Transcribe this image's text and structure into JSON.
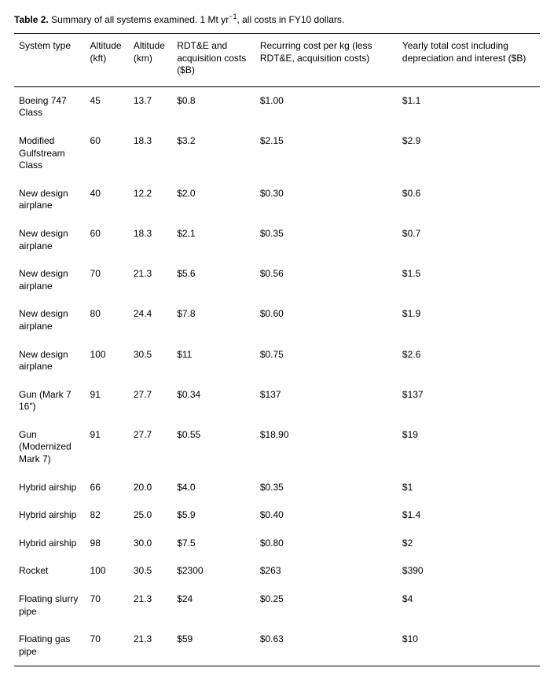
{
  "caption": {
    "label": "Table 2.",
    "text_before": "Summary of all systems examined. 1 Mt yr",
    "superscript": "−1",
    "text_after": ", all costs in FY10 dollars."
  },
  "columns": [
    "System type",
    "Altitude (kft)",
    "Altitude (km)",
    "RDT&E and acquisition costs ($B)",
    "Recurring cost per kg (less RDT&E, acquisition costs)",
    "Yearly total cost including depreciation and interest ($B)"
  ],
  "rows": [
    [
      "Boeing 747 Class",
      "45",
      "13.7",
      "$0.8",
      "$1.00",
      "$1.1"
    ],
    [
      "Modified Gulfstream Class",
      "60",
      "18.3",
      "$3.2",
      "$2.15",
      "$2.9"
    ],
    [
      "New design airplane",
      "40",
      "12.2",
      "$2.0",
      "$0.30",
      "$0.6"
    ],
    [
      "New design airplane",
      "60",
      "18.3",
      "$2.1",
      "$0.35",
      "$0.7"
    ],
    [
      "New design airplane",
      "70",
      "21.3",
      "$5.6",
      "$0.56",
      "$1.5"
    ],
    [
      "New design airplane",
      "80",
      "24.4",
      "$7.8",
      "$0.60",
      "$1.9"
    ],
    [
      "New design airplane",
      "100",
      "30.5",
      "$11",
      "$0.75",
      "$2.6"
    ],
    [
      "Gun (Mark 7 16\")",
      "91",
      "27.7",
      "$0.34",
      "$137",
      "$137"
    ],
    [
      "Gun (Modernized Mark 7)",
      "91",
      "27.7",
      "$0.55",
      "$18.90",
      "$19"
    ],
    [
      "Hybrid airship",
      "66",
      "20.0",
      "$4.0",
      "$0.35",
      "$1"
    ],
    [
      "Hybrid airship",
      "82",
      "25.0",
      "$5.9",
      "$0.40",
      "$1.4"
    ],
    [
      "Hybrid airship",
      "98",
      "30.0",
      "$7.5",
      "$0.80",
      "$2"
    ],
    [
      "Rocket",
      "100",
      "30.5",
      "$2300",
      "$263",
      "$390"
    ],
    [
      "Floating slurry pipe",
      "70",
      "21.3",
      "$24",
      "$0.25",
      "$4"
    ],
    [
      "Floating gas pipe",
      "70",
      "21.3",
      "$59",
      "$0.63",
      "$10"
    ]
  ]
}
